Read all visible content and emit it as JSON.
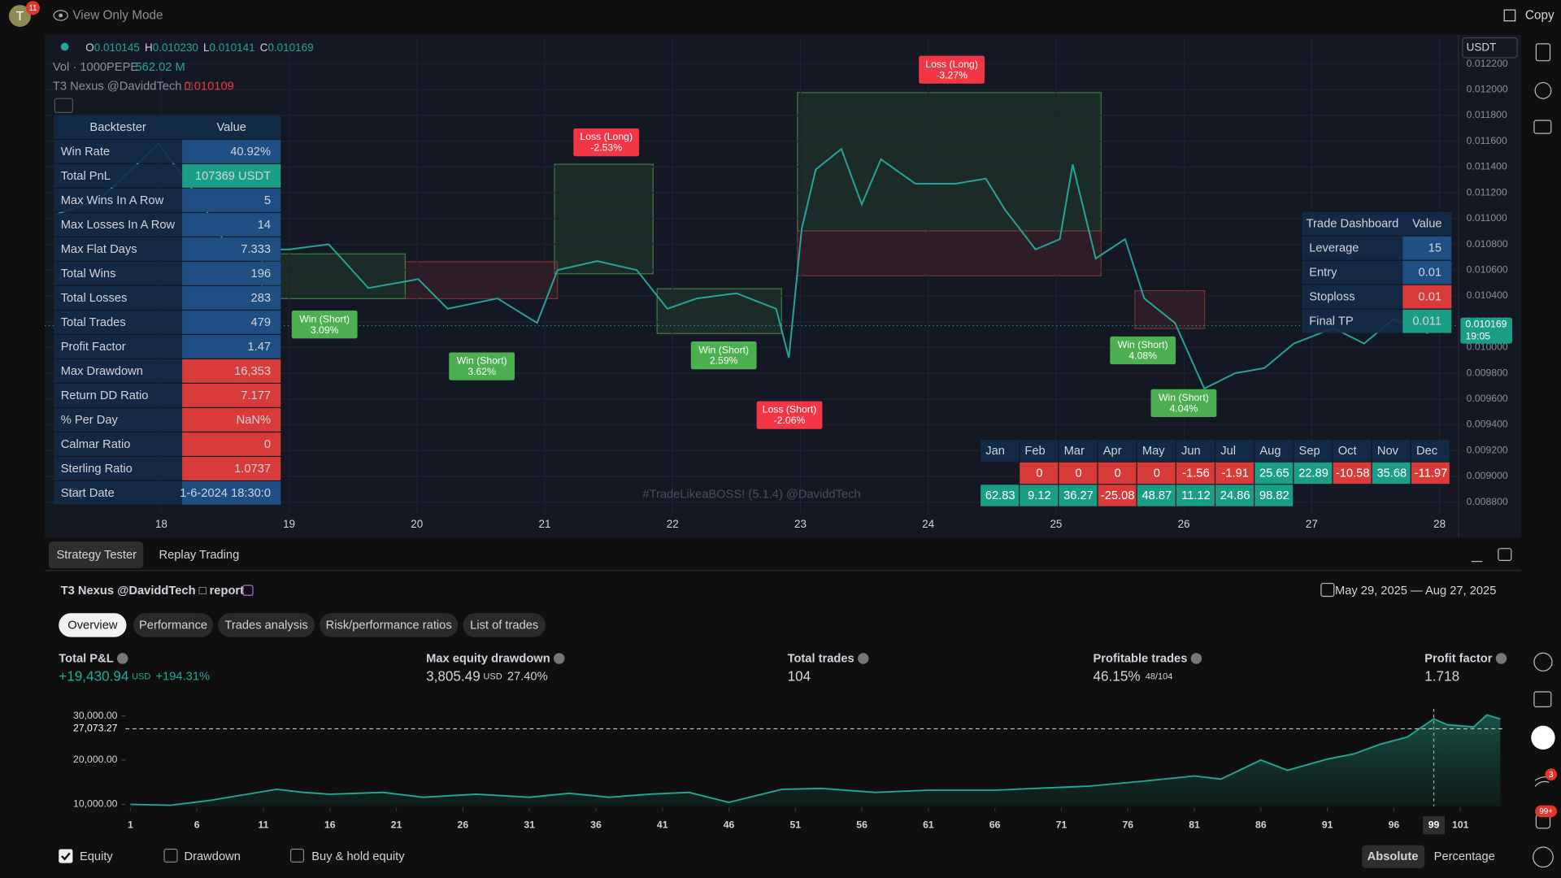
{
  "top_bar": {
    "avatar": "T",
    "notifications": "11",
    "mode": "View Only Mode",
    "copy": "Copy"
  },
  "chart_header": {
    "ohlc": [
      {
        "key": "O",
        "value": "0.010145"
      },
      {
        "key": "H",
        "value": "0.010230"
      },
      {
        "key": "L",
        "value": "0.010141"
      },
      {
        "key": "C",
        "value": "0.010169"
      }
    ],
    "volume_label": "Vol · 1000PEPE",
    "volume": "562.02 M",
    "indicator": "T3 Nexus @DaviddTech □",
    "indicator_value": "0.010109",
    "currency": "USDT",
    "watermark": "#TradeLikeaBOSS! (5.1.4) @DaviddTech"
  },
  "chart_data": [
    {
      "type": "line",
      "color": "#26a69a",
      "x": [
        17.17,
        17.52,
        17.98,
        18.3,
        18.53,
        19.0,
        19.31,
        19.62,
        20.01,
        20.24,
        20.63,
        20.94,
        21.1,
        21.41,
        21.72,
        21.96,
        22.19,
        22.5,
        22.81,
        22.91,
        23.01,
        23.12,
        23.32,
        23.48,
        23.63,
        23.9,
        24.21,
        24.45,
        24.6,
        24.84,
        25.03,
        25.13,
        25.31,
        25.54,
        25.69,
        25.93,
        26.16,
        26.4,
        26.63,
        26.86,
        27.17,
        27.41,
        27.64,
        27.91
      ],
      "values": [
        0.01103,
        0.01115,
        0.01158,
        0.01115,
        0.01076,
        0.01076,
        0.0108,
        0.01046,
        0.01053,
        0.0103,
        0.01038,
        0.01019,
        0.0106,
        0.01067,
        0.0106,
        0.0103,
        0.01038,
        0.01042,
        0.0103,
        0.00992,
        0.01092,
        0.01138,
        0.01154,
        0.01111,
        0.01146,
        0.01127,
        0.01127,
        0.01131,
        0.01107,
        0.01076,
        0.01084,
        0.01142,
        0.01069,
        0.01084,
        0.01038,
        0.01019,
        0.00968,
        0.0098,
        0.00984,
        0.01003,
        0.01015,
        0.01003,
        0.01022,
        0.01011
      ],
      "xlim": [
        17.089,
        28.148
      ],
      "xticks": [
        18,
        19,
        20,
        21,
        22,
        23,
        24,
        25,
        26,
        27,
        28
      ],
      "ylim": [
        0.008718,
        0.012402
      ],
      "yticks": [
        {
          "value": 0.0122,
          "label": "0.012200"
        },
        {
          "value": 0.012,
          "label": "0.012000"
        },
        {
          "value": 0.0118,
          "label": "0.011800"
        },
        {
          "value": 0.0116,
          "label": "0.011600"
        },
        {
          "value": 0.0114,
          "label": "0.011400"
        },
        {
          "value": 0.0112,
          "label": "0.011200"
        },
        {
          "value": 0.011,
          "label": "0.011000"
        },
        {
          "value": 0.0108,
          "label": "0.010800"
        },
        {
          "value": 0.0106,
          "label": "0.010600"
        },
        {
          "value": 0.0104,
          "label": "0.010400"
        },
        {
          "value": 0.0102,
          "label": "0.010200"
        },
        {
          "value": 0.01,
          "label": "0.010000"
        },
        {
          "value": 0.0098,
          "label": "0.009800"
        },
        {
          "value": 0.0096,
          "label": "0.009600"
        },
        {
          "value": 0.0094,
          "label": "0.009400"
        },
        {
          "value": 0.0092,
          "label": "0.009200"
        },
        {
          "value": 0.009,
          "label": "0.009000"
        },
        {
          "value": 0.0088,
          "label": "0.008800"
        }
      ],
      "last_price": 0.010169,
      "countdown": "19:05"
    },
    {
      "type": "area",
      "x": [
        1,
        4,
        7,
        12,
        14,
        16,
        20,
        23,
        27,
        31,
        34,
        37,
        40,
        43,
        46,
        50,
        53,
        57,
        61,
        66,
        69,
        73,
        77,
        81,
        83,
        86,
        88,
        91,
        93,
        95,
        97,
        99,
        100,
        102,
        103,
        104
      ],
      "series": [
        {
          "name": "Equity",
          "color": "#22ab94",
          "values": [
            10000,
            9800,
            10900,
            13400,
            12700,
            12300,
            12700,
            11600,
            12300,
            11600,
            12500,
            11600,
            12300,
            12700,
            10450,
            13400,
            13600,
            12700,
            13200,
            13200,
            13600,
            14100,
            15200,
            16400,
            15700,
            20000,
            17700,
            20200,
            21400,
            23600,
            25200,
            29300,
            28000,
            27500,
            30200,
            29300
          ]
        }
      ],
      "xlim": [
        1,
        104
      ],
      "xticks": [
        1,
        6,
        11,
        16,
        21,
        26,
        31,
        36,
        41,
        46,
        51,
        56,
        61,
        66,
        71,
        76,
        81,
        86,
        91,
        96,
        101
      ],
      "ylim": [
        9545,
        32045
      ],
      "yticks": [
        {
          "value": 30000,
          "label": "30,000.00"
        },
        {
          "value": 20000,
          "label": "20,000.00"
        },
        {
          "value": 10000,
          "label": "10,000.00"
        }
      ],
      "crosshair": {
        "x": 99,
        "y": {
          "value": 27073.27,
          "label": "27,073.27"
        }
      }
    }
  ],
  "trade_labels": [
    {
      "result": "Loss (Long)",
      "pct": "-2.53%",
      "color": "#f23645"
    },
    {
      "result": "Loss (Long)",
      "pct": "-3.27%",
      "color": "#f23645"
    },
    {
      "result": "Win (Short)",
      "pct": "3.09%",
      "color": "#4caf50"
    },
    {
      "result": "Win (Short)",
      "pct": "3.62%",
      "color": "#4caf50"
    },
    {
      "result": "Win (Short)",
      "pct": "2.59%",
      "color": "#4caf50"
    },
    {
      "result": "Loss (Short)",
      "pct": "-2.06%",
      "color": "#f23645"
    },
    {
      "result": "Win (Short)",
      "pct": "4.08%",
      "color": "#4caf50"
    },
    {
      "result": "Win (Short)",
      "pct": "4.04%",
      "color": "#4caf50"
    }
  ],
  "backtester": {
    "header": [
      "Backtester",
      "Value"
    ],
    "rows": [
      {
        "label": "Win Rate",
        "value": "40.92%",
        "color": "#1f4e82"
      },
      {
        "label": "Total PnL",
        "value": "107369 USDT",
        "color": "#1b9e86"
      },
      {
        "label": "Max Wins In A Row",
        "value": "5",
        "color": "#1f4e82"
      },
      {
        "label": "Max Losses In A Row",
        "value": "14",
        "color": "#1f4e82"
      },
      {
        "label": "Max Flat Days",
        "value": "7.333",
        "color": "#1f4e82"
      },
      {
        "label": "Total Wins",
        "value": "196",
        "color": "#1f4e82"
      },
      {
        "label": "Total Losses",
        "value": "283",
        "color": "#1f4e82"
      },
      {
        "label": "Total Trades",
        "value": "479",
        "color": "#1f4e82"
      },
      {
        "label": "Profit Factor",
        "value": "1.47",
        "color": "#1f4e82"
      },
      {
        "label": "Max Drawdown",
        "value": "16,353",
        "color": "#d93a3a"
      },
      {
        "label": "Return DD Ratio",
        "value": "7.177",
        "color": "#d93a3a"
      },
      {
        "label": "% Per Day",
        "value": "NaN%",
        "color": "#d93a3a"
      },
      {
        "label": "Calmar Ratio",
        "value": "0",
        "color": "#d93a3a"
      },
      {
        "label": "Sterling Ratio",
        "value": "1.0737",
        "color": "#d93a3a"
      },
      {
        "label": "Start Date",
        "value": "1-6-2024 18:30:0",
        "color": "#1f4e82"
      }
    ]
  },
  "trade_dashboard": {
    "header": [
      "Trade Dashboard",
      "Value"
    ],
    "rows": [
      {
        "label": "Leverage",
        "value": "15",
        "color": "#1f4e82"
      },
      {
        "label": "Entry",
        "value": "0.01",
        "color": "#1f4e82"
      },
      {
        "label": "Stoploss",
        "value": "0.01",
        "color": "#d93a3a"
      },
      {
        "label": "Final TP",
        "value": "0.011",
        "color": "#1b9e86"
      }
    ]
  },
  "monthly": {
    "months": [
      "Jan",
      "Feb",
      "Mar",
      "Apr",
      "May",
      "Jun",
      "Jul",
      "Aug",
      "Sep",
      "Oct",
      "Nov",
      "Dec"
    ],
    "rows": [
      [
        null,
        0,
        0,
        0,
        0,
        -1.56,
        -1.91,
        25.65,
        22.89,
        -10.58,
        35.68,
        -11.97
      ],
      [
        62.83,
        9.12,
        36.27,
        -25.08,
        48.87,
        11.12,
        24.86,
        98.82,
        null,
        null,
        null,
        null
      ]
    ],
    "positive_color": "#1b9e86",
    "negative_color": "#d93a3a"
  },
  "panel_tabs": [
    "Strategy Tester",
    "Replay Trading"
  ],
  "report": {
    "title": "T3 Nexus @DaviddTech □ report",
    "date_range": "May 29, 2025 — Aug 27, 2025",
    "tabs": [
      "Overview",
      "Performance",
      "Trades analysis",
      "Risk/performance ratios",
      "List of trades"
    ],
    "metrics": [
      {
        "label": "Total P&L",
        "value": "+19,430.94",
        "unit": "USD",
        "extra": "+194.31%"
      },
      {
        "label": "Max equity drawdown",
        "value": "3,805.49",
        "unit": "USD",
        "extra": "27.40%"
      },
      {
        "label": "Total trades",
        "value": "104"
      },
      {
        "label": "Profitable trades",
        "value": "46.15%",
        "extra": "48/104"
      },
      {
        "label": "Profit factor",
        "value": "1.718"
      }
    ]
  },
  "equity_options": [
    "Drawdown",
    "Buy & hold equity"
  ],
  "scale_modes": [
    "Absolute",
    "Percentage"
  ],
  "toolbar_badges": [
    "3",
    "99+"
  ]
}
